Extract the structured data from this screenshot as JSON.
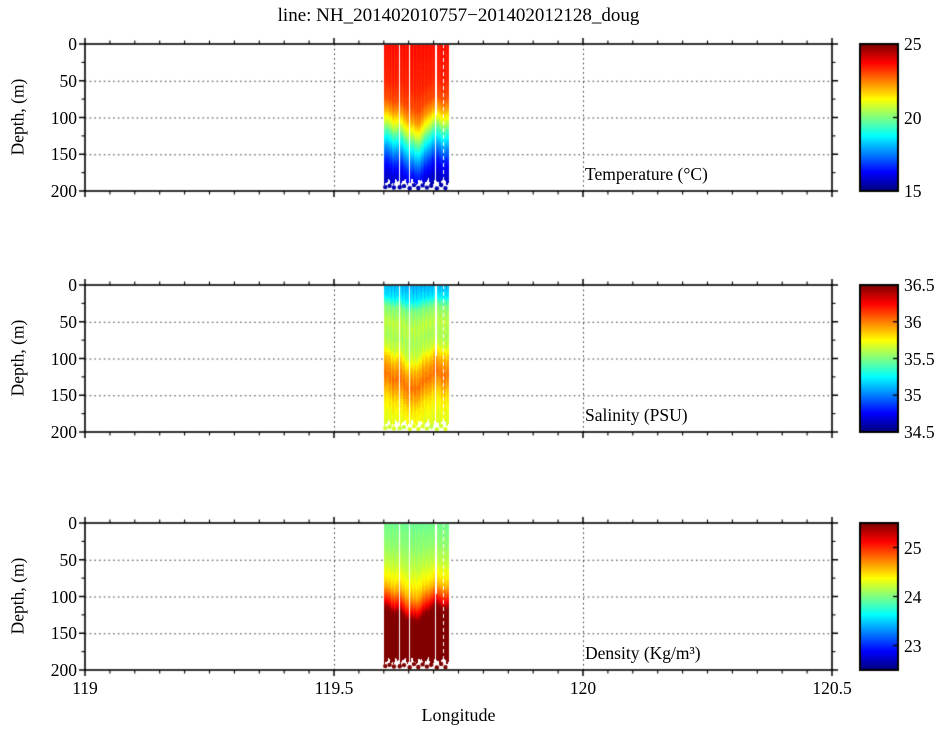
{
  "title": "line: NH_201402010757−201402012128_doug",
  "axes": {
    "xlabel": "Longitude",
    "ylabel": "Depth, (m)",
    "xlim": [
      119,
      120.5
    ],
    "ylim": [
      0,
      200
    ],
    "xticks": [
      {
        "value": 119,
        "label": "119"
      },
      {
        "value": 119.5,
        "label": "119.5"
      },
      {
        "value": 120,
        "label": "120"
      },
      {
        "value": 120.5,
        "label": "120.5"
      }
    ],
    "yticks": [
      {
        "value": 0,
        "label": "0"
      },
      {
        "value": 50,
        "label": "50"
      },
      {
        "value": 100,
        "label": "100"
      },
      {
        "value": 150,
        "label": "150"
      },
      {
        "value": 200,
        "label": "200"
      }
    ],
    "x_minor_step": 0.05,
    "y_minor_step": 25,
    "grid_x": [
      119.5,
      120
    ],
    "grid_y": [
      50,
      100,
      150
    ],
    "grid_style": "dotted"
  },
  "colors": {
    "background": "#ffffff",
    "axis": "#000000",
    "grid": "#333333",
    "text": "#000000",
    "nodata": "#ffffff"
  },
  "chart_data": {
    "type": "heatmap",
    "colormap": "jet",
    "x_range_data": [
      119.602,
      119.7295
    ],
    "depth_top": 2,
    "depth_bottom_mean": 188,
    "marker_depth": 194,
    "gaps": [
      {
        "x0": 119.629,
        "x1": 119.6315,
        "d0": 0,
        "d1": 200
      },
      {
        "x0": 119.649,
        "x1": 119.6515,
        "d0": 0,
        "d1": 200
      },
      {
        "x0": 119.7025,
        "x1": 119.7065,
        "d0": 0,
        "d1": 97
      },
      {
        "x0": 119.7025,
        "x1": 119.7045,
        "d0": 97,
        "d1": 200
      },
      {
        "x0": 119.7185,
        "x1": 119.7197,
        "d0": 0,
        "d1": 200,
        "dashed": true
      }
    ],
    "dot_spans": [
      [
        119.603,
        119.6285
      ],
      [
        119.632,
        119.6485
      ],
      [
        119.652,
        119.702
      ],
      [
        119.7065,
        119.7285
      ]
    ],
    "series": [
      {
        "name": "temperature",
        "label": "Temperature (°C)",
        "clim": [
          15,
          25
        ],
        "cbar_ticks": [
          {
            "value": 25,
            "label": "25"
          },
          {
            "value": 20,
            "label": "20"
          },
          {
            "value": 15,
            "label": "15"
          }
        ],
        "profile_stops": [
          [
            0,
            23.6
          ],
          [
            50,
            23.4
          ],
          [
            75,
            23.0
          ],
          [
            90,
            22.2
          ],
          [
            100,
            21.4
          ],
          [
            110,
            20.6
          ],
          [
            120,
            19.6
          ],
          [
            132,
            18.6
          ],
          [
            145,
            17.6
          ],
          [
            160,
            16.6
          ],
          [
            178,
            15.9
          ],
          [
            200,
            15.4
          ]
        ],
        "wiggle_m": 8,
        "bump_m": 20,
        "col_jitter": 0.18,
        "pix_jitter": 0.12
      },
      {
        "name": "salinity",
        "label": "Salinity (PSU)",
        "clim": [
          34.5,
          36.5
        ],
        "cbar_ticks": [
          {
            "value": 36.5,
            "label": "36.5"
          },
          {
            "value": 36,
            "label": "36"
          },
          {
            "value": 35.5,
            "label": "35.5"
          },
          {
            "value": 35,
            "label": "35"
          },
          {
            "value": 34.5,
            "label": "34.5"
          }
        ],
        "profile_stops": [
          [
            0,
            35.1
          ],
          [
            15,
            35.2
          ],
          [
            30,
            35.5
          ],
          [
            50,
            35.62
          ],
          [
            70,
            35.58
          ],
          [
            85,
            35.65
          ],
          [
            100,
            35.85
          ],
          [
            112,
            35.95
          ],
          [
            125,
            36.02
          ],
          [
            140,
            35.92
          ],
          [
            155,
            35.8
          ],
          [
            175,
            35.72
          ],
          [
            200,
            35.66
          ]
        ],
        "wiggle_m": 10,
        "bump_m": 14,
        "col_jitter": 0.06,
        "pix_jitter": 0.05
      },
      {
        "name": "density",
        "label": "Density (Kg/m³)",
        "clim": [
          22.5,
          25.5
        ],
        "cbar_ticks": [
          {
            "value": 25,
            "label": "25"
          },
          {
            "value": 24,
            "label": "24"
          },
          {
            "value": 23,
            "label": "23"
          }
        ],
        "profile_stops": [
          [
            0,
            23.95
          ],
          [
            30,
            24.05
          ],
          [
            55,
            24.2
          ],
          [
            75,
            24.4
          ],
          [
            88,
            24.6
          ],
          [
            98,
            24.85
          ],
          [
            108,
            25.1
          ],
          [
            118,
            25.45
          ],
          [
            130,
            25.55
          ],
          [
            200,
            25.6
          ]
        ],
        "wiggle_m": 8,
        "bump_m": 14,
        "col_jitter": 0.06,
        "pix_jitter": 0.05
      }
    ]
  }
}
